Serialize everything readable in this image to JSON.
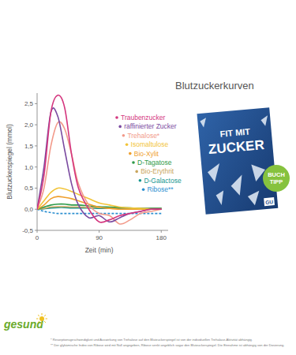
{
  "chart_data": {
    "type": "line",
    "title": "Blutzuckerkurven",
    "x_label": "Zeit (min)",
    "y_label": "Blutzuckerspiegel (mmol)",
    "x": [
      0,
      10,
      20,
      30,
      40,
      50,
      60,
      75,
      90,
      105,
      120,
      135,
      150,
      165,
      180
    ],
    "xlim": [
      0,
      190
    ],
    "xticks": [
      0,
      90,
      180
    ],
    "ylim": [
      -0.5,
      2.75
    ],
    "yticks": [
      {
        "value": -0.5,
        "label": "-0,5"
      },
      {
        "value": 0,
        "label": "0,0"
      },
      {
        "value": 0.5,
        "label": "0,5"
      },
      {
        "value": 1,
        "label": "1,0"
      },
      {
        "value": 1.5,
        "label": "1,5"
      },
      {
        "value": 2,
        "label": "2,0"
      },
      {
        "value": 2.5,
        "label": "2,5"
      }
    ],
    "grid": false,
    "series": [
      {
        "name": "Traubenzucker",
        "color": "#d4367e",
        "line_style": "solid",
        "values": [
          0,
          0.8,
          2.3,
          2.7,
          2.4,
          1.3,
          0.5,
          0.0,
          -0.3,
          -0.25,
          -0.15,
          -0.1,
          -0.05,
          0,
          0
        ]
      },
      {
        "name": "raffinierter Zucker",
        "color": "#7a4aa0",
        "line_style": "solid",
        "values": [
          0,
          1.0,
          2.3,
          2.2,
          1.4,
          0.6,
          0.1,
          -0.2,
          -0.15,
          -0.3,
          -0.2,
          -0.1,
          -0.05,
          0,
          0
        ]
      },
      {
        "name": "Trehalose*",
        "color": "#f29a8a",
        "line_style": "solid",
        "values": [
          0,
          0.5,
          1.5,
          2.05,
          1.9,
          1.3,
          0.6,
          0.1,
          -0.1,
          -0.15,
          -0.35,
          -0.25,
          -0.1,
          -0.05,
          0
        ]
      },
      {
        "name": "Isomaltulose",
        "color": "#f2c438",
        "line_style": "solid",
        "values": [
          0,
          0.2,
          0.4,
          0.5,
          0.48,
          0.42,
          0.35,
          0.25,
          0.15,
          0.1,
          0.05,
          0.03,
          0.02,
          0,
          0
        ]
      },
      {
        "name": "Bio-Xylit",
        "color": "#ef9f2e",
        "line_style": "solid",
        "values": [
          0,
          0.1,
          0.25,
          0.3,
          0.28,
          0.25,
          0.2,
          0.12,
          0.05,
          0.02,
          0,
          0,
          0,
          0,
          0
        ]
      },
      {
        "name": "D-Tagatose",
        "color": "#2e9a48",
        "line_style": "solid",
        "values": [
          0,
          0.05,
          0.1,
          0.12,
          0.12,
          0.1,
          0.1,
          0.08,
          0.06,
          0.05,
          0.04,
          0.03,
          0.02,
          0.02,
          0.02
        ]
      },
      {
        "name": "Bio-Erythrit",
        "color": "#c9a55c",
        "line_style": "solid",
        "values": [
          0,
          0.02,
          0.05,
          0.06,
          0.06,
          0.05,
          0.05,
          0.04,
          0.04,
          0.03,
          0.03,
          0.02,
          0.02,
          0.02,
          0.02
        ]
      },
      {
        "name": "D-Galactose",
        "color": "#14968f",
        "line_style": "solid",
        "values": [
          0,
          0.01,
          0.03,
          0.04,
          0.04,
          0.03,
          0.03,
          0.03,
          0.02,
          0.02,
          0.02,
          0.01,
          0.01,
          0.01,
          0.01
        ]
      },
      {
        "name": "Ribose**",
        "color": "#2c8fd0",
        "line_style": "dashed",
        "values": [
          0,
          -0.05,
          -0.08,
          -0.1,
          -0.1,
          -0.1,
          -0.1,
          -0.1,
          -0.1,
          -0.1,
          -0.1,
          -0.1,
          -0.1,
          -0.1,
          -0.1
        ]
      }
    ],
    "legend": "right"
  },
  "book": {
    "title_lines": [
      "FIT MIT",
      "ZUCKER"
    ],
    "publisher": "GU",
    "badge": [
      "BUCH",
      "TIPP"
    ]
  },
  "logo": "gesund",
  "footnotes": [
    "* Resorptionsgeschwindigkeit und Auswirkung von Trehalose auf den Blutzuckerspiegel ist von der individuellen Trehalase-Aktivität abhängig.",
    "** Der glykämische Index von Ribose wird mit Null angegeben, Ribose senkt angeblich sogar den Blutzuckerspiegel. Die Einnahme ist abhängig von der Dosierung."
  ]
}
